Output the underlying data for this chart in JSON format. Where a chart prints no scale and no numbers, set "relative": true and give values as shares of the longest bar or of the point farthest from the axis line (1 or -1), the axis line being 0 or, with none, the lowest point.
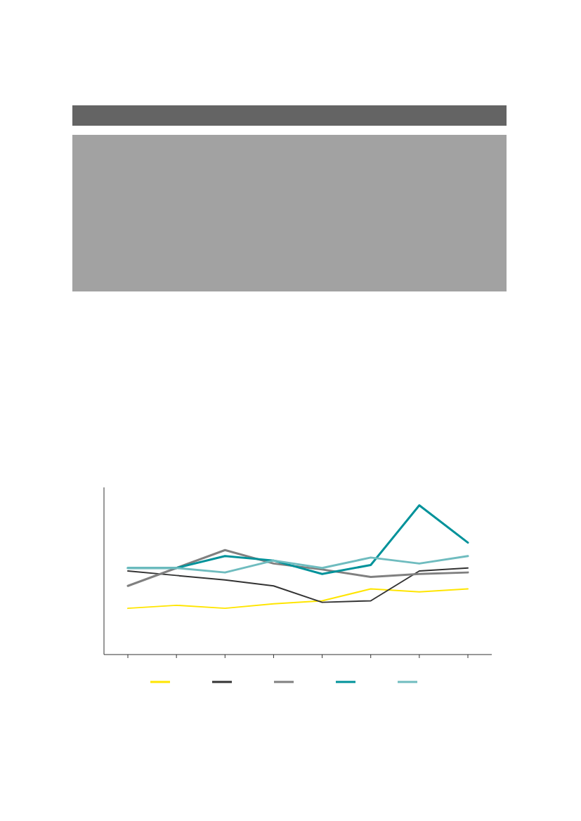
{
  "chart_data": {
    "type": "line",
    "relative": true,
    "categories": [
      null,
      null,
      null,
      null,
      null,
      null,
      null,
      null
    ],
    "series": [
      {
        "color": "#ffe500",
        "values": [
          0.31,
          0.33,
          0.31,
          0.34,
          0.36,
          0.44,
          0.42,
          0.44
        ]
      },
      {
        "color": "#333333",
        "values": [
          0.56,
          0.53,
          0.5,
          0.46,
          0.35,
          0.36,
          0.56,
          0.58
        ]
      },
      {
        "color": "#808080",
        "values": [
          0.46,
          0.58,
          0.7,
          0.61,
          0.57,
          0.52,
          0.54,
          0.55
        ]
      },
      {
        "color": "#00929a",
        "values": [
          0.58,
          0.58,
          0.66,
          0.63,
          0.54,
          0.6,
          1,
          0.75
        ]
      },
      {
        "color": "#6fbcbf",
        "values": [
          0.58,
          0.58,
          0.55,
          0.63,
          0.58,
          0.65,
          0.61,
          0.66
        ]
      }
    ],
    "grid": false,
    "marker": "none",
    "line_style": "solid"
  }
}
